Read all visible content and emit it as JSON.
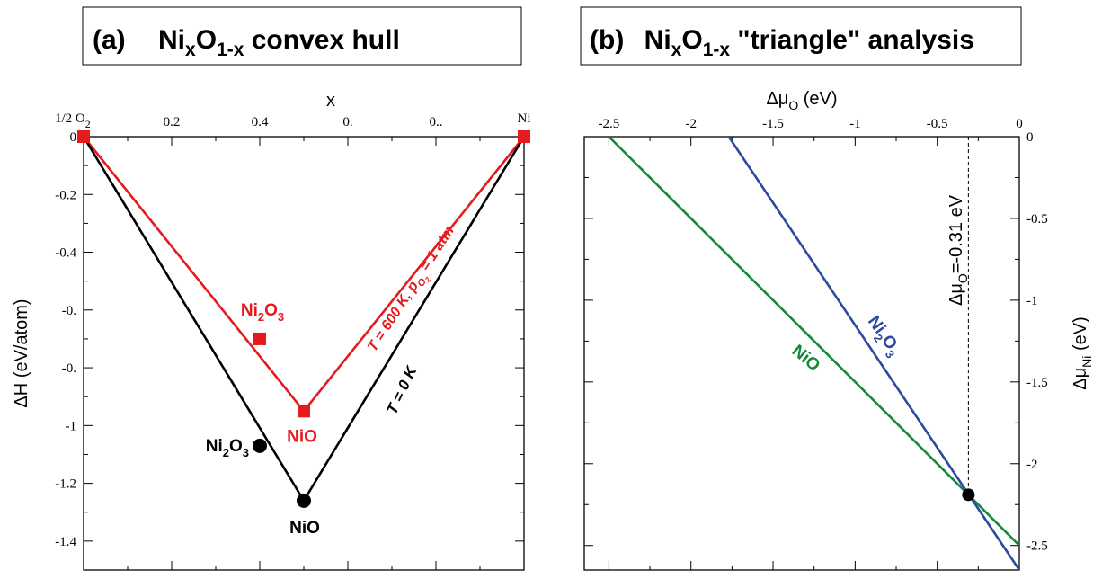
{
  "colors": {
    "black": "#000000",
    "red": "#e41a1c",
    "blue": "#2b4a9f",
    "green": "#138a3a"
  },
  "chart_data": [
    {
      "panel": "(a)",
      "type": "line",
      "title": {
        "letter": "(a)",
        "formula": {
          "base1": "Ni",
          "sub1": "x",
          "base2": "O",
          "sub2": "1-x"
        },
        "rest": " convex hull"
      },
      "xlabel": "x",
      "ylabel": "ΔH (eV/atom)",
      "xlim": [
        0,
        1
      ],
      "ylim": [
        -1.5,
        0
      ],
      "x_ticks": [
        {
          "value": 0.2,
          "label": "0.2"
        },
        {
          "value": 0.4,
          "label": "0.4"
        },
        {
          "value": 0.6,
          "label": "0."
        },
        {
          "value": 0.8,
          "label": "0.."
        }
      ],
      "y_ticks": [
        {
          "value": 0,
          "label": "0"
        },
        {
          "value": -0.2,
          "label": "-0.2"
        },
        {
          "value": -0.4,
          "label": "-0.4"
        },
        {
          "value": -0.6,
          "label": "-0."
        },
        {
          "value": -0.8,
          "label": "-0."
        },
        {
          "value": -1.0,
          "label": "-1"
        },
        {
          "value": -1.2,
          "label": "-1.2"
        },
        {
          "value": -1.4,
          "label": "-1.4"
        }
      ],
      "end_labels": {
        "left": {
          "base": "1/2 O",
          "sub": "2"
        },
        "right": {
          "base": "Ni",
          "sub": ""
        }
      },
      "series": [
        {
          "name": "T = 0 K",
          "color": "#000000",
          "x": [
            0,
            0.5,
            1
          ],
          "y": [
            0,
            -1.26,
            0
          ],
          "points": [
            {
              "x": 0.4,
              "y": -1.07,
              "label": {
                "parts": [
                  [
                    "Ni",
                    ""
                  ],
                  [
                    "2",
                    "sub"
                  ],
                  [
                    "O",
                    ""
                  ],
                  [
                    "3",
                    "sub"
                  ]
                ]
              }
            },
            {
              "x": 0.5,
              "y": -1.26,
              "label": {
                "parts": [
                  [
                    "NiO",
                    ""
                  ]
                ]
              }
            }
          ]
        },
        {
          "name": "T = 600 K, p_O2 = 1 atm",
          "color": "#e41a1c",
          "x": [
            0,
            0.5,
            1
          ],
          "y": [
            0,
            -0.95,
            0
          ],
          "points": [
            {
              "x": 0.4,
              "y": -0.7,
              "label": {
                "parts": [
                  [
                    "Ni",
                    ""
                  ],
                  [
                    "2",
                    "sub"
                  ],
                  [
                    "O",
                    ""
                  ],
                  [
                    "3",
                    "sub"
                  ]
                ]
              }
            },
            {
              "x": 0.5,
              "y": -0.95,
              "label": {
                "parts": [
                  [
                    "NiO",
                    ""
                  ]
                ]
              }
            }
          ]
        }
      ],
      "line_labels": {
        "black": "T = 0 K",
        "red": {
          "pre": "T = 600 K, p",
          "sub": "O",
          "subsub": "2",
          "post": " = 1 atm"
        }
      }
    },
    {
      "panel": "(b)",
      "type": "line",
      "title": {
        "letter": "(b)",
        "formula": {
          "base1": "Ni",
          "sub1": "x",
          "base2": "O",
          "sub2": "1-x"
        },
        "rest": " \"triangle\" analysis"
      },
      "xlabel": {
        "pre": "Δμ",
        "sub": "O",
        "post": " (eV)"
      },
      "ylabel": {
        "pre": "Δμ",
        "sub": "Ni",
        "post": " (eV)"
      },
      "xlim": [
        -2.65,
        0
      ],
      "ylim": [
        -2.65,
        0
      ],
      "x_ticks": [
        {
          "value": -2.5,
          "label": "-2.5"
        },
        {
          "value": -2.0,
          "label": "-2"
        },
        {
          "value": -1.5,
          "label": "-1.5"
        },
        {
          "value": -1.0,
          "label": "-1"
        },
        {
          "value": -0.5,
          "label": "-0.5"
        },
        {
          "value": 0,
          "label": "0"
        }
      ],
      "y_ticks": [
        {
          "value": 0,
          "label": "0"
        },
        {
          "value": -0.5,
          "label": "-0.5"
        },
        {
          "value": -1.0,
          "label": "-1"
        },
        {
          "value": -1.5,
          "label": "-1.5"
        },
        {
          "value": -2.0,
          "label": "-2"
        },
        {
          "value": -2.5,
          "label": "-2.5"
        }
      ],
      "series": [
        {
          "name": "NiO",
          "color": "#138a3a",
          "x": [
            -2.5,
            0
          ],
          "y": [
            0,
            -2.5
          ]
        },
        {
          "name": "Ni2O3",
          "color": "#2b4a9f",
          "x": [
            -1.77,
            0
          ],
          "y": [
            0,
            -2.65
          ]
        }
      ],
      "series_labels": {
        "NiO": {
          "parts": [
            [
              "NiO",
              ""
            ]
          ]
        },
        "Ni2O3": {
          "parts": [
            [
              "Ni",
              ""
            ],
            [
              "2",
              "sub"
            ],
            [
              "O",
              ""
            ],
            [
              "3",
              "sub"
            ]
          ]
        }
      },
      "marker": {
        "x": -0.31,
        "y": -2.19
      },
      "vline": {
        "x": -0.31,
        "label": {
          "pre": "Δμ",
          "sub": "O",
          "post": "=-0.31 eV"
        }
      }
    }
  ]
}
